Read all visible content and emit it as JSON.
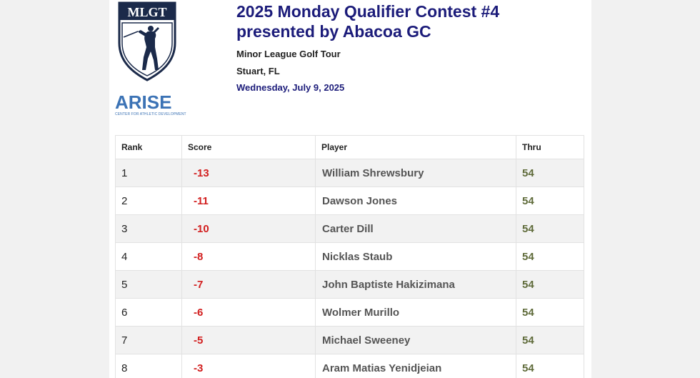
{
  "logos": {
    "mlgt_text": "MLGT",
    "arise_text": "ARISE",
    "arise_sub": "CENTER FOR ATHLETIC DEVELOPMENT",
    "colors": {
      "mlgt_navy": "#1b2a4a",
      "arise_blue": "#3c73b5"
    }
  },
  "event": {
    "title_line1": "2025 Monday Qualifier Contest #4",
    "title_line2": "presented by Abacoa GC",
    "tour": "Minor League Golf Tour",
    "location": "Stuart, FL",
    "date": "Wednesday, July 9, 2025"
  },
  "leaderboard": {
    "columns": {
      "rank": "Rank",
      "score": "Score",
      "player": "Player",
      "thru": "Thru"
    },
    "rows": [
      {
        "rank": "1",
        "score": "-13",
        "player": "William Shrewsbury",
        "thru": "54"
      },
      {
        "rank": "2",
        "score": "-11",
        "player": "Dawson Jones",
        "thru": "54"
      },
      {
        "rank": "3",
        "score": "-10",
        "player": "Carter Dill",
        "thru": "54"
      },
      {
        "rank": "4",
        "score": "-8",
        "player": "Nicklas Staub",
        "thru": "54"
      },
      {
        "rank": "5",
        "score": "-7",
        "player": "John Baptiste Hakizimana",
        "thru": "54"
      },
      {
        "rank": "6",
        "score": "-6",
        "player": "Wolmer Murillo",
        "thru": "54"
      },
      {
        "rank": "7",
        "score": "-5",
        "player": "Michael Sweeney",
        "thru": "54"
      },
      {
        "rank": "8",
        "score": "-3",
        "player": "Aram Matias Yenidjeian",
        "thru": "54"
      }
    ]
  },
  "colors": {
    "title": "#1c1c7a",
    "score": "#d21f1f",
    "thru": "#5f6b3a",
    "row_alt": "#f2f2f2"
  }
}
